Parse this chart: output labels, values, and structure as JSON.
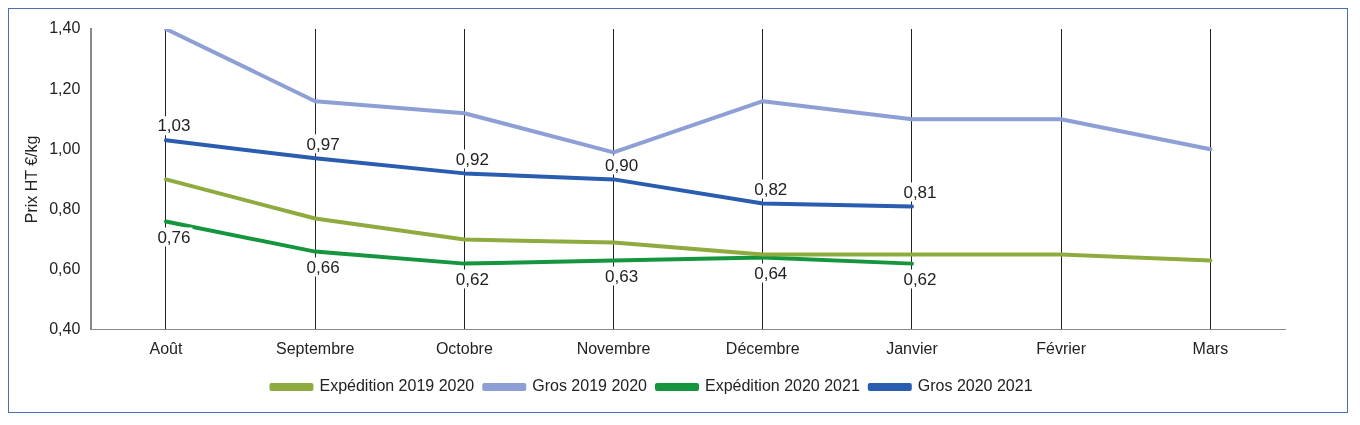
{
  "chart_data": {
    "type": "line",
    "ylabel": "Prix HT €/kg",
    "categories": [
      "Août",
      "Septembre",
      "Octobre",
      "Novembre",
      "Décembre",
      "Janvier",
      "Février",
      "Mars"
    ],
    "series": [
      {
        "name": "Expédition 2019 2020",
        "color": "#8fab3f",
        "values": [
          0.9,
          0.77,
          0.7,
          0.69,
          0.65,
          0.65,
          0.65,
          0.63
        ]
      },
      {
        "name": "Gros 2019 2020",
        "color": "#8d9fd5",
        "values": [
          1.4,
          1.16,
          1.12,
          0.99,
          1.16,
          1.1,
          1.1,
          1.0
        ]
      },
      {
        "name": "Expédition 2020 2021",
        "color": "#16953f",
        "values": [
          0.76,
          0.66,
          0.62,
          0.63,
          0.64,
          0.62,
          null,
          null
        ],
        "value_labels": [
          "0,76",
          "0,66",
          "0,62",
          "0,63",
          "0,64",
          "0,62",
          null,
          null
        ]
      },
      {
        "name": "Gros 2020 2021",
        "color": "#2a5cb0",
        "values": [
          1.03,
          0.97,
          0.92,
          0.9,
          0.82,
          0.81,
          null,
          null
        ],
        "value_labels": [
          "1,03",
          "0,97",
          "0,92",
          "0,90",
          "0,82",
          "0,81",
          null,
          null
        ]
      }
    ],
    "ylim": [
      0.4,
      1.4
    ],
    "yticks": [
      {
        "value": 0.4,
        "label": "0,40"
      },
      {
        "value": 0.6,
        "label": "0,60"
      },
      {
        "value": 0.8,
        "label": "0,80"
      },
      {
        "value": 1.0,
        "label": "1,00"
      },
      {
        "value": 1.2,
        "label": "1,20"
      },
      {
        "value": 1.4,
        "label": "1,40"
      }
    ],
    "grid": "x",
    "legend": "bottom",
    "marker": "none",
    "line_style": "solid"
  }
}
